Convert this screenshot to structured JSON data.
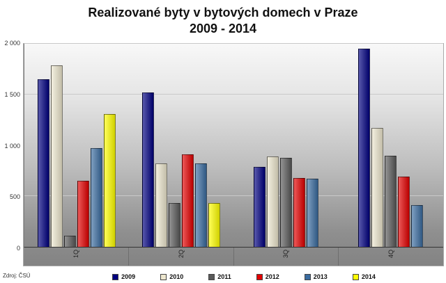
{
  "title": {
    "line1": "Realizované byty v bytových domech v Praze",
    "line2": "2009 - 2014"
  },
  "source": "Zdroj: ČSÚ",
  "chart_data": {
    "type": "bar",
    "title": "Realizované byty v bytových domech v Praze 2009 - 2014",
    "categories": [
      "1Q",
      "2Q",
      "3Q",
      "4Q"
    ],
    "series": [
      {
        "name": "2009",
        "color": "#000080",
        "values": [
          1650,
          1520,
          790,
          1950
        ]
      },
      {
        "name": "2010",
        "color": "#EDE7CE",
        "values": [
          1790,
          820,
          890,
          1170
        ]
      },
      {
        "name": "2011",
        "color": "#5A5A5A",
        "values": [
          110,
          430,
          880,
          900
        ]
      },
      {
        "name": "2012",
        "color": "#E30000",
        "values": [
          650,
          910,
          680,
          690
        ]
      },
      {
        "name": "2013",
        "color": "#3A6CA0",
        "values": [
          970,
          820,
          670,
          410
        ]
      },
      {
        "name": "2014",
        "color": "#FFFF00",
        "values": [
          1310,
          430,
          null,
          null
        ]
      }
    ],
    "ylim": [
      0,
      2000
    ],
    "yticks": [
      0,
      500,
      1000,
      1500,
      2000
    ],
    "ytick_labels": [
      "0",
      "500",
      "1 000",
      "1 500",
      "2 000"
    ],
    "grid": true,
    "legend_position": "bottom"
  }
}
